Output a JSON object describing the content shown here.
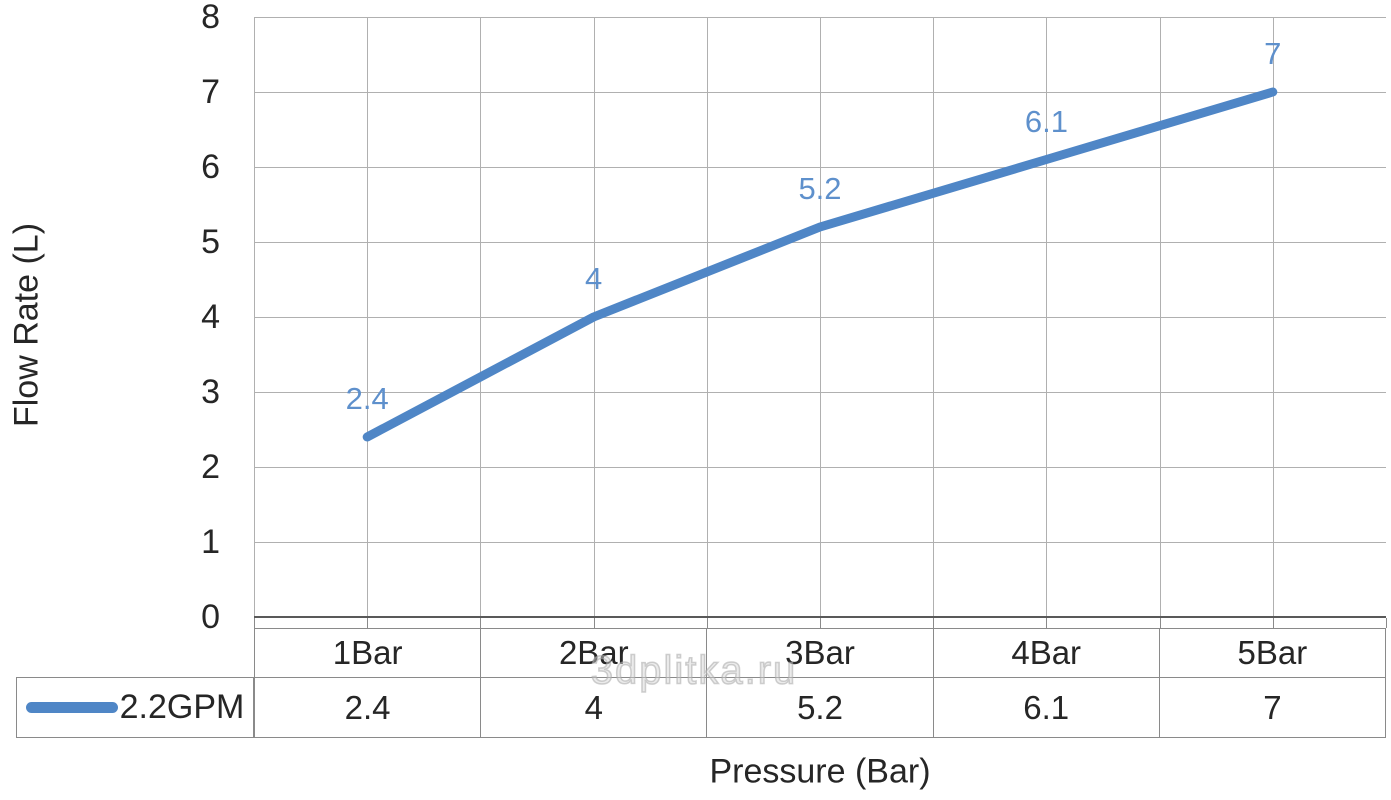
{
  "chart_data": {
    "type": "line",
    "title": "",
    "categories": [
      "1Bar",
      "2Bar",
      "3Bar",
      "4Bar",
      "5Bar"
    ],
    "series": [
      {
        "name": "2.2GPM",
        "values": [
          2.4,
          4,
          5.2,
          6.1,
          7
        ],
        "labels": [
          "2.4",
          "4",
          "5.2",
          "6.1",
          "7"
        ],
        "color": "#4F86C6"
      }
    ],
    "xlabel": "Pressure (Bar)",
    "ylabel": "Flow Rate (L)",
    "ylim": [
      0,
      8
    ],
    "yticks": [
      0,
      1,
      2,
      3,
      4,
      5,
      6,
      7,
      8
    ],
    "grid": {
      "horizontal": true,
      "vertical": true,
      "vertical_lines_per_category": 2
    },
    "legend": {
      "position": "data-table-left",
      "entries": [
        "2.2GPM"
      ]
    },
    "data_table": true
  },
  "watermark": "3dplitka.ru",
  "colors": {
    "series_line": "#4F86C6",
    "data_label": "#5E90CC",
    "gridline": "#b0b0b0",
    "axis_line": "#595959",
    "table_border": "#8a8a8a",
    "text": "#262626",
    "background": "#ffffff"
  }
}
